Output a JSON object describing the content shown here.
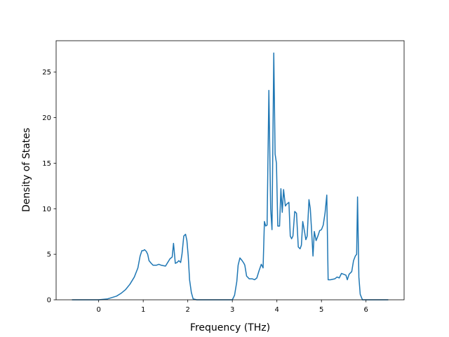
{
  "chart_data": {
    "type": "line",
    "xlabel": "Frequency (THz)",
    "ylabel": "Density of States",
    "color": "#1f77b4",
    "x": [
      -0.6,
      0,
      0.2,
      0.4,
      0.5,
      0.6,
      0.7,
      0.8,
      0.88,
      0.93,
      0.97,
      1.0,
      1.03,
      1.07,
      1.1,
      1.13,
      1.18,
      1.22,
      1.3,
      1.35,
      1.4,
      1.5,
      1.55,
      1.6,
      1.65,
      1.68,
      1.72,
      1.76,
      1.8,
      1.84,
      1.87,
      1.91,
      1.95,
      1.98,
      2.01,
      2.04,
      2.08,
      2.12,
      2.2,
      3.0,
      3.05,
      3.1,
      3.13,
      3.17,
      3.22,
      3.26,
      3.28,
      3.32,
      3.38,
      3.45,
      3.5,
      3.55,
      3.6,
      3.65,
      3.69,
      3.72,
      3.75,
      3.78,
      3.82,
      3.86,
      3.89,
      3.93,
      3.96,
      3.99,
      4.02,
      4.06,
      4.09,
      4.12,
      4.15,
      4.19,
      4.22,
      4.27,
      4.3,
      4.33,
      4.36,
      4.4,
      4.44,
      4.48,
      4.52,
      4.55,
      4.58,
      4.62,
      4.65,
      4.68,
      4.72,
      4.75,
      4.78,
      4.81,
      4.84,
      4.88,
      4.92,
      4.96,
      5.0,
      5.04,
      5.08,
      5.12,
      5.15,
      5.2,
      5.3,
      5.35,
      5.4,
      5.45,
      5.5,
      5.55,
      5.58,
      5.62,
      5.68,
      5.72,
      5.76,
      5.79,
      5.81,
      5.84,
      5.87,
      5.92,
      6.5
    ],
    "values": [
      0,
      0,
      0.1,
      0.4,
      0.7,
      1.1,
      1.7,
      2.5,
      3.5,
      4.8,
      5.4,
      5.4,
      5.5,
      5.3,
      5.0,
      4.3,
      4.0,
      3.8,
      3.8,
      3.9,
      3.8,
      3.7,
      4.1,
      4.5,
      4.7,
      6.2,
      4.0,
      4.1,
      4.3,
      4.1,
      5.0,
      7.0,
      7.2,
      6.5,
      4.8,
      2.2,
      0.8,
      0.1,
      0,
      0,
      0.5,
      2.0,
      3.8,
      4.6,
      4.3,
      4.0,
      3.8,
      2.6,
      2.3,
      2.3,
      2.2,
      2.4,
      3.2,
      3.9,
      3.5,
      8.6,
      8.1,
      8.2,
      23.0,
      10.0,
      7.7,
      27.1,
      16.0,
      15.0,
      8.1,
      8.1,
      12.2,
      9.6,
      12.1,
      10.3,
      10.5,
      10.7,
      7.0,
      6.7,
      7.0,
      9.7,
      9.5,
      5.8,
      5.6,
      6.0,
      8.6,
      7.5,
      6.6,
      7.0,
      11.0,
      10.0,
      7.5,
      4.8,
      7.5,
      6.5,
      7.0,
      7.6,
      7.7,
      8.2,
      9.5,
      11.5,
      2.2,
      2.2,
      2.3,
      2.5,
      2.4,
      2.9,
      2.8,
      2.7,
      2.2,
      2.8,
      3.1,
      4.3,
      4.8,
      5.0,
      11.3,
      2.5,
      0.6,
      0,
      0
    ],
    "xlim": [
      -0.955,
      6.855
    ],
    "ylim": [
      0,
      28.45
    ],
    "xticks": [
      0,
      1,
      2,
      3,
      4,
      5,
      6
    ],
    "yticks": [
      0,
      5,
      10,
      15,
      20,
      25
    ]
  }
}
